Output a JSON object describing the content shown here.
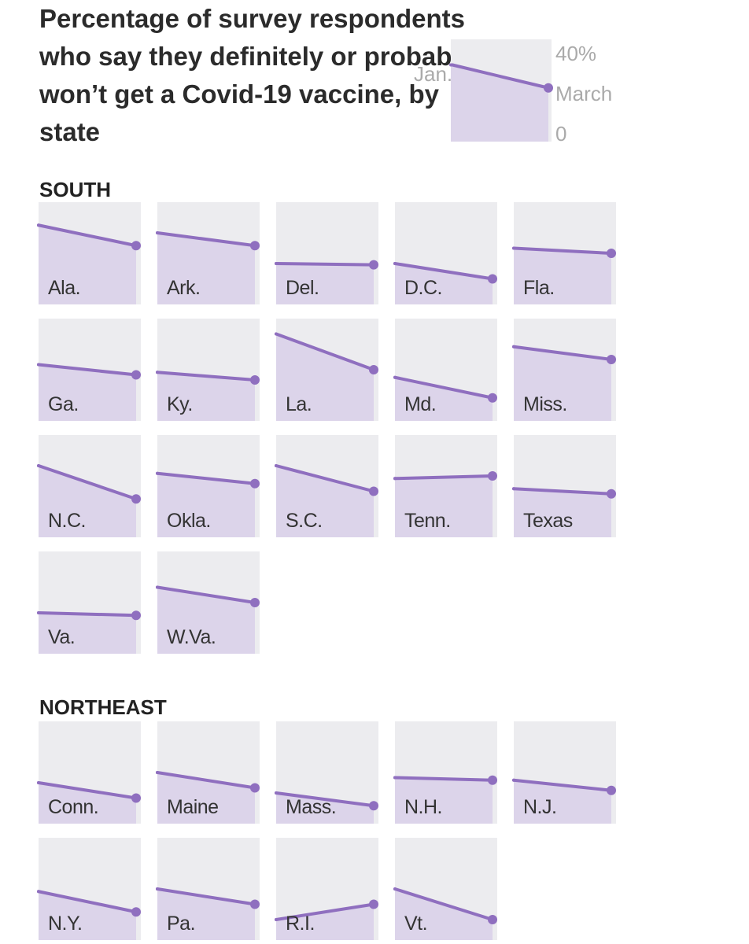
{
  "title": "Percentage of survey respondents who say they definitely or probably won’t get a Covid-19 vaccine, by state",
  "legend": {
    "start_label": "Jan.",
    "end_label": "March",
    "y_max_label": "40%",
    "y_min_label": "0",
    "example": {
      "jan": 30,
      "march": 21
    }
  },
  "colors": {
    "line": "#8f6fbf",
    "fill": "#dcd4ea",
    "panel_bg": "#ececef"
  },
  "chart_data": {
    "type": "line",
    "x": [
      "Jan.",
      "March"
    ],
    "ylim": [
      0,
      40
    ],
    "y_unit": "%",
    "regions": [
      {
        "name": "SOUTH",
        "states": [
          {
            "name": "Ala.",
            "values": [
              31,
              23
            ]
          },
          {
            "name": "Ark.",
            "values": [
              28,
              23
            ]
          },
          {
            "name": "Del.",
            "values": [
              16,
              15.5
            ]
          },
          {
            "name": "D.C.",
            "values": [
              16,
              10
            ]
          },
          {
            "name": "Fla.",
            "values": [
              22,
              20
            ]
          },
          {
            "name": "Ga.",
            "values": [
              22,
              18
            ]
          },
          {
            "name": "Ky.",
            "values": [
              19,
              16
            ]
          },
          {
            "name": "La.",
            "values": [
              34,
              20
            ]
          },
          {
            "name": "Md.",
            "values": [
              17,
              9
            ]
          },
          {
            "name": "Miss.",
            "values": [
              29,
              24
            ]
          },
          {
            "name": "N.C.",
            "values": [
              28,
              15
            ]
          },
          {
            "name": "Okla.",
            "values": [
              25,
              21
            ]
          },
          {
            "name": "S.C.",
            "values": [
              28,
              18
            ]
          },
          {
            "name": "Tenn.",
            "values": [
              23,
              24
            ]
          },
          {
            "name": "Texas",
            "values": [
              19,
              17
            ]
          },
          {
            "name": "Va.",
            "values": [
              16,
              15
            ]
          },
          {
            "name": "W.Va.",
            "values": [
              26,
              20
            ]
          }
        ]
      },
      {
        "name": "NORTHEAST",
        "states": [
          {
            "name": "Conn.",
            "values": [
              16,
              10
            ]
          },
          {
            "name": "Maine",
            "values": [
              20,
              14
            ]
          },
          {
            "name": "Mass.",
            "values": [
              12,
              7
            ]
          },
          {
            "name": "N.H.",
            "values": [
              18,
              17
            ]
          },
          {
            "name": "N.J.",
            "values": [
              17,
              13
            ]
          },
          {
            "name": "N.Y.",
            "values": [
              19,
              11
            ]
          },
          {
            "name": "Pa.",
            "values": [
              20,
              14
            ]
          },
          {
            "name": "R.I.",
            "values": [
              8,
              14
            ]
          },
          {
            "name": "Vt.",
            "values": [
              20,
              8
            ]
          }
        ]
      }
    ]
  }
}
